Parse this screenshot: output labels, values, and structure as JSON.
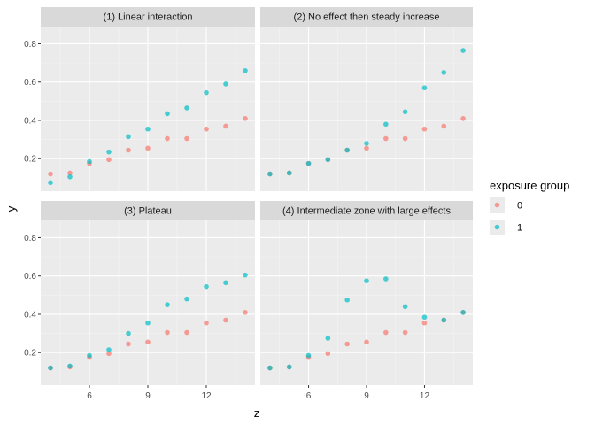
{
  "chart_data": {
    "type": "scatter",
    "xlabel": "z",
    "ylabel": "y",
    "xlim": [
      3.5,
      14.5
    ],
    "ylim": [
      0.03,
      0.89
    ],
    "x_ticks": [
      6,
      9,
      12
    ],
    "x_tick_labels": [
      "6",
      "9",
      "12"
    ],
    "y_ticks": [
      0.2,
      0.4,
      0.6,
      0.8
    ],
    "y_tick_labels": [
      "0.2",
      "0.4",
      "0.6",
      "0.8"
    ],
    "grid": true,
    "legend": {
      "title": "exposure group",
      "position": "right",
      "entries": [
        {
          "label": "0",
          "color": "#F8766D"
        },
        {
          "label": "1",
          "color": "#00BFC4"
        }
      ]
    },
    "colors": {
      "group0": "#F8766D",
      "group1": "#00BFC4"
    },
    "x": [
      4,
      5,
      6,
      7,
      8,
      9,
      10,
      11,
      12,
      13,
      14
    ],
    "panels": [
      {
        "title": "(1) Linear interaction",
        "series": [
          {
            "name": "0",
            "values": [
              0.12,
              0.125,
              0.175,
              0.195,
              0.245,
              0.255,
              0.305,
              0.305,
              0.355,
              0.37,
              0.41
            ]
          },
          {
            "name": "1",
            "values": [
              0.075,
              0.105,
              0.185,
              0.235,
              0.315,
              0.355,
              0.435,
              0.465,
              0.545,
              0.59,
              0.66
            ]
          }
        ]
      },
      {
        "title": "(2) No effect then steady increase",
        "series": [
          {
            "name": "0",
            "values": [
              0.12,
              0.125,
              0.175,
              0.195,
              0.245,
              0.255,
              0.305,
              0.305,
              0.355,
              0.37,
              0.41
            ]
          },
          {
            "name": "1",
            "values": [
              0.12,
              0.125,
              0.175,
              0.195,
              0.245,
              0.28,
              0.38,
              0.445,
              0.57,
              0.65,
              0.765
            ]
          }
        ]
      },
      {
        "title": "(3) Plateau",
        "series": [
          {
            "name": "0",
            "values": [
              0.12,
              0.125,
              0.175,
              0.195,
              0.245,
              0.255,
              0.305,
              0.305,
              0.355,
              0.37,
              0.41
            ]
          },
          {
            "name": "1",
            "values": [
              0.12,
              0.13,
              0.185,
              0.215,
              0.3,
              0.355,
              0.45,
              0.48,
              0.545,
              0.565,
              0.605
            ]
          }
        ]
      },
      {
        "title": "(4) Intermediate zone with large effects",
        "series": [
          {
            "name": "0",
            "values": [
              0.12,
              0.125,
              0.175,
              0.195,
              0.245,
              0.255,
              0.305,
              0.305,
              0.355,
              0.37,
              0.41
            ]
          },
          {
            "name": "1",
            "values": [
              0.12,
              0.125,
              0.185,
              0.275,
              0.475,
              0.575,
              0.585,
              0.44,
              0.385,
              0.37,
              0.41
            ]
          }
        ]
      }
    ]
  }
}
